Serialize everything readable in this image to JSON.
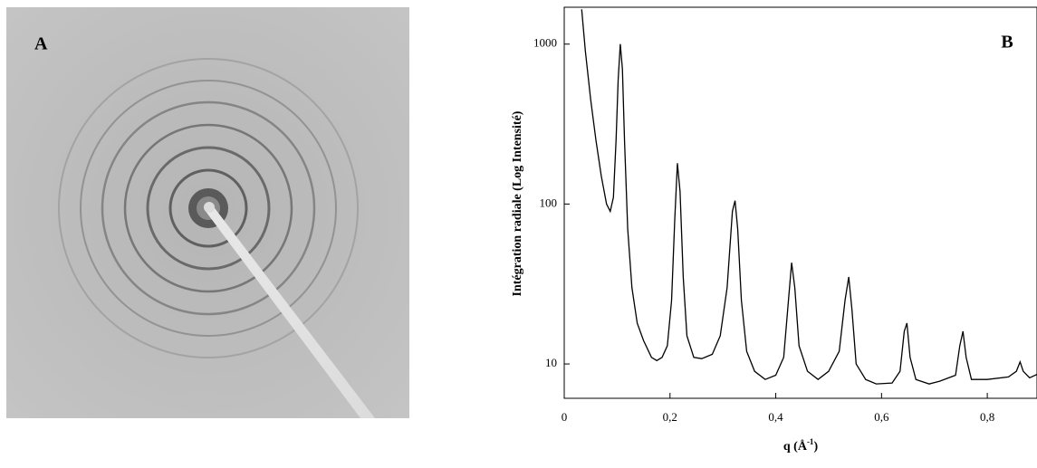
{
  "panel_a": {
    "label": "A"
  },
  "chart_data": {
    "type": "line",
    "panel_label": "B",
    "ylabel": "Intégration radiale (Log Intensité)",
    "xlabel": {
      "text": "q (Å",
      "sup": "-1",
      "close": ")"
    },
    "log_y": true,
    "color": "#000000",
    "xlim": [
      0,
      0.894
    ],
    "ylim": [
      6.1,
      1700
    ],
    "xticks": [
      0,
      {
        "value": 0.2,
        "label": "0,2"
      },
      {
        "value": 0.4,
        "label": "0,4"
      },
      {
        "value": 0.6,
        "label": "0,6"
      },
      {
        "value": 0.8,
        "label": "0,8"
      }
    ],
    "yticks": [
      10,
      100,
      1000
    ],
    "x": [
      0.033,
      0.04,
      0.05,
      0.06,
      0.07,
      0.08,
      0.087,
      0.093,
      0.098,
      0.102,
      0.106,
      0.11,
      0.114,
      0.12,
      0.128,
      0.138,
      0.15,
      0.165,
      0.175,
      0.185,
      0.195,
      0.203,
      0.209,
      0.214,
      0.219,
      0.225,
      0.232,
      0.245,
      0.26,
      0.28,
      0.295,
      0.308,
      0.318,
      0.323,
      0.328,
      0.335,
      0.345,
      0.36,
      0.38,
      0.4,
      0.415,
      0.424,
      0.43,
      0.436,
      0.444,
      0.46,
      0.48,
      0.5,
      0.52,
      0.531,
      0.538,
      0.544,
      0.552,
      0.57,
      0.59,
      0.62,
      0.635,
      0.643,
      0.648,
      0.654,
      0.665,
      0.69,
      0.71,
      0.74,
      0.748,
      0.754,
      0.76,
      0.77,
      0.8,
      0.84,
      0.855,
      0.862,
      0.868,
      0.88,
      0.894
    ],
    "values": [
      1650,
      900,
      450,
      250,
      150,
      100,
      90,
      110,
      250,
      600,
      1000,
      700,
      250,
      70,
      30,
      18,
      14,
      11,
      10.5,
      11,
      13,
      25,
      80,
      180,
      120,
      35,
      15,
      11,
      10.8,
      11.5,
      15,
      30,
      90,
      105,
      70,
      25,
      12,
      9,
      8,
      8.5,
      11,
      25,
      43,
      30,
      13,
      9,
      8,
      9,
      12,
      25,
      35,
      22,
      10,
      8,
      7.5,
      7.6,
      9,
      16,
      18,
      11,
      8,
      7.5,
      7.8,
      8.5,
      13,
      16,
      11,
      8,
      8,
      8.3,
      9,
      10.3,
      9,
      8.2,
      8.6
    ]
  }
}
